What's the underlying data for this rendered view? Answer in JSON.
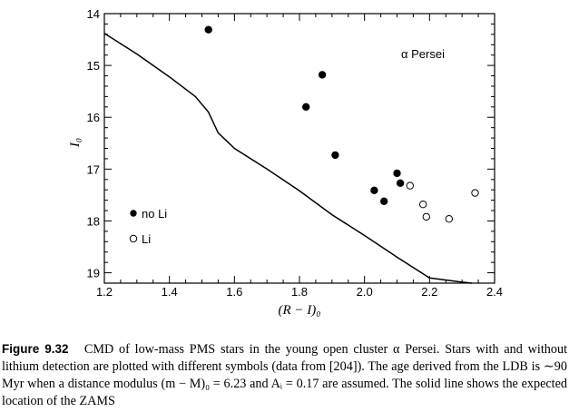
{
  "chart_data": {
    "type": "scatter",
    "xlabel": "(R − I)₀",
    "ylabel": "I₀",
    "xlim": [
      1.2,
      2.4
    ],
    "ylim": [
      19.2,
      14.0
    ],
    "y_inverted": true,
    "x_ticks": [
      "1.2",
      "1.4",
      "1.6",
      "1.8",
      "2.0",
      "2.2",
      "2.4"
    ],
    "y_ticks": [
      "14",
      "15",
      "16",
      "17",
      "18",
      "19"
    ],
    "annotation": "α Persei",
    "legend_placement": "bottom-left",
    "series": [
      {
        "name": "no Li",
        "marker": "filled-circle",
        "x": [
          1.52,
          1.87,
          1.82,
          1.91,
          2.1,
          2.11,
          2.03,
          2.06
        ],
        "y": [
          14.31,
          15.18,
          15.8,
          16.73,
          17.08,
          17.27,
          17.41,
          17.62
        ]
      },
      {
        "name": "Li",
        "marker": "open-circle",
        "x": [
          2.14,
          2.18,
          2.19,
          2.26,
          2.34
        ],
        "y": [
          17.32,
          17.68,
          17.92,
          17.96,
          17.46
        ]
      }
    ],
    "zams_line": {
      "x": [
        1.2,
        1.3,
        1.4,
        1.48,
        1.52,
        1.55,
        1.6,
        1.7,
        1.8,
        1.9,
        2.0,
        2.1,
        2.2,
        2.3,
        2.33
      ],
      "y": [
        14.38,
        14.78,
        15.22,
        15.6,
        15.9,
        16.3,
        16.6,
        17.0,
        17.42,
        17.88,
        18.28,
        18.7,
        19.1,
        19.18,
        19.2
      ]
    }
  },
  "caption": {
    "figure_number": "Figure 9.32",
    "text": "CMD of low-mass PMS stars in the young open cluster α Persei. Stars with and without lithium detection are plotted with different symbols (data from [204]). The age derived from the LDB is ∼90 Myr when a distance modulus (m − M)₀ = 6.23 and Aᵢ = 0.17 are assumed. The solid line shows the expected location of the ZAMS"
  }
}
